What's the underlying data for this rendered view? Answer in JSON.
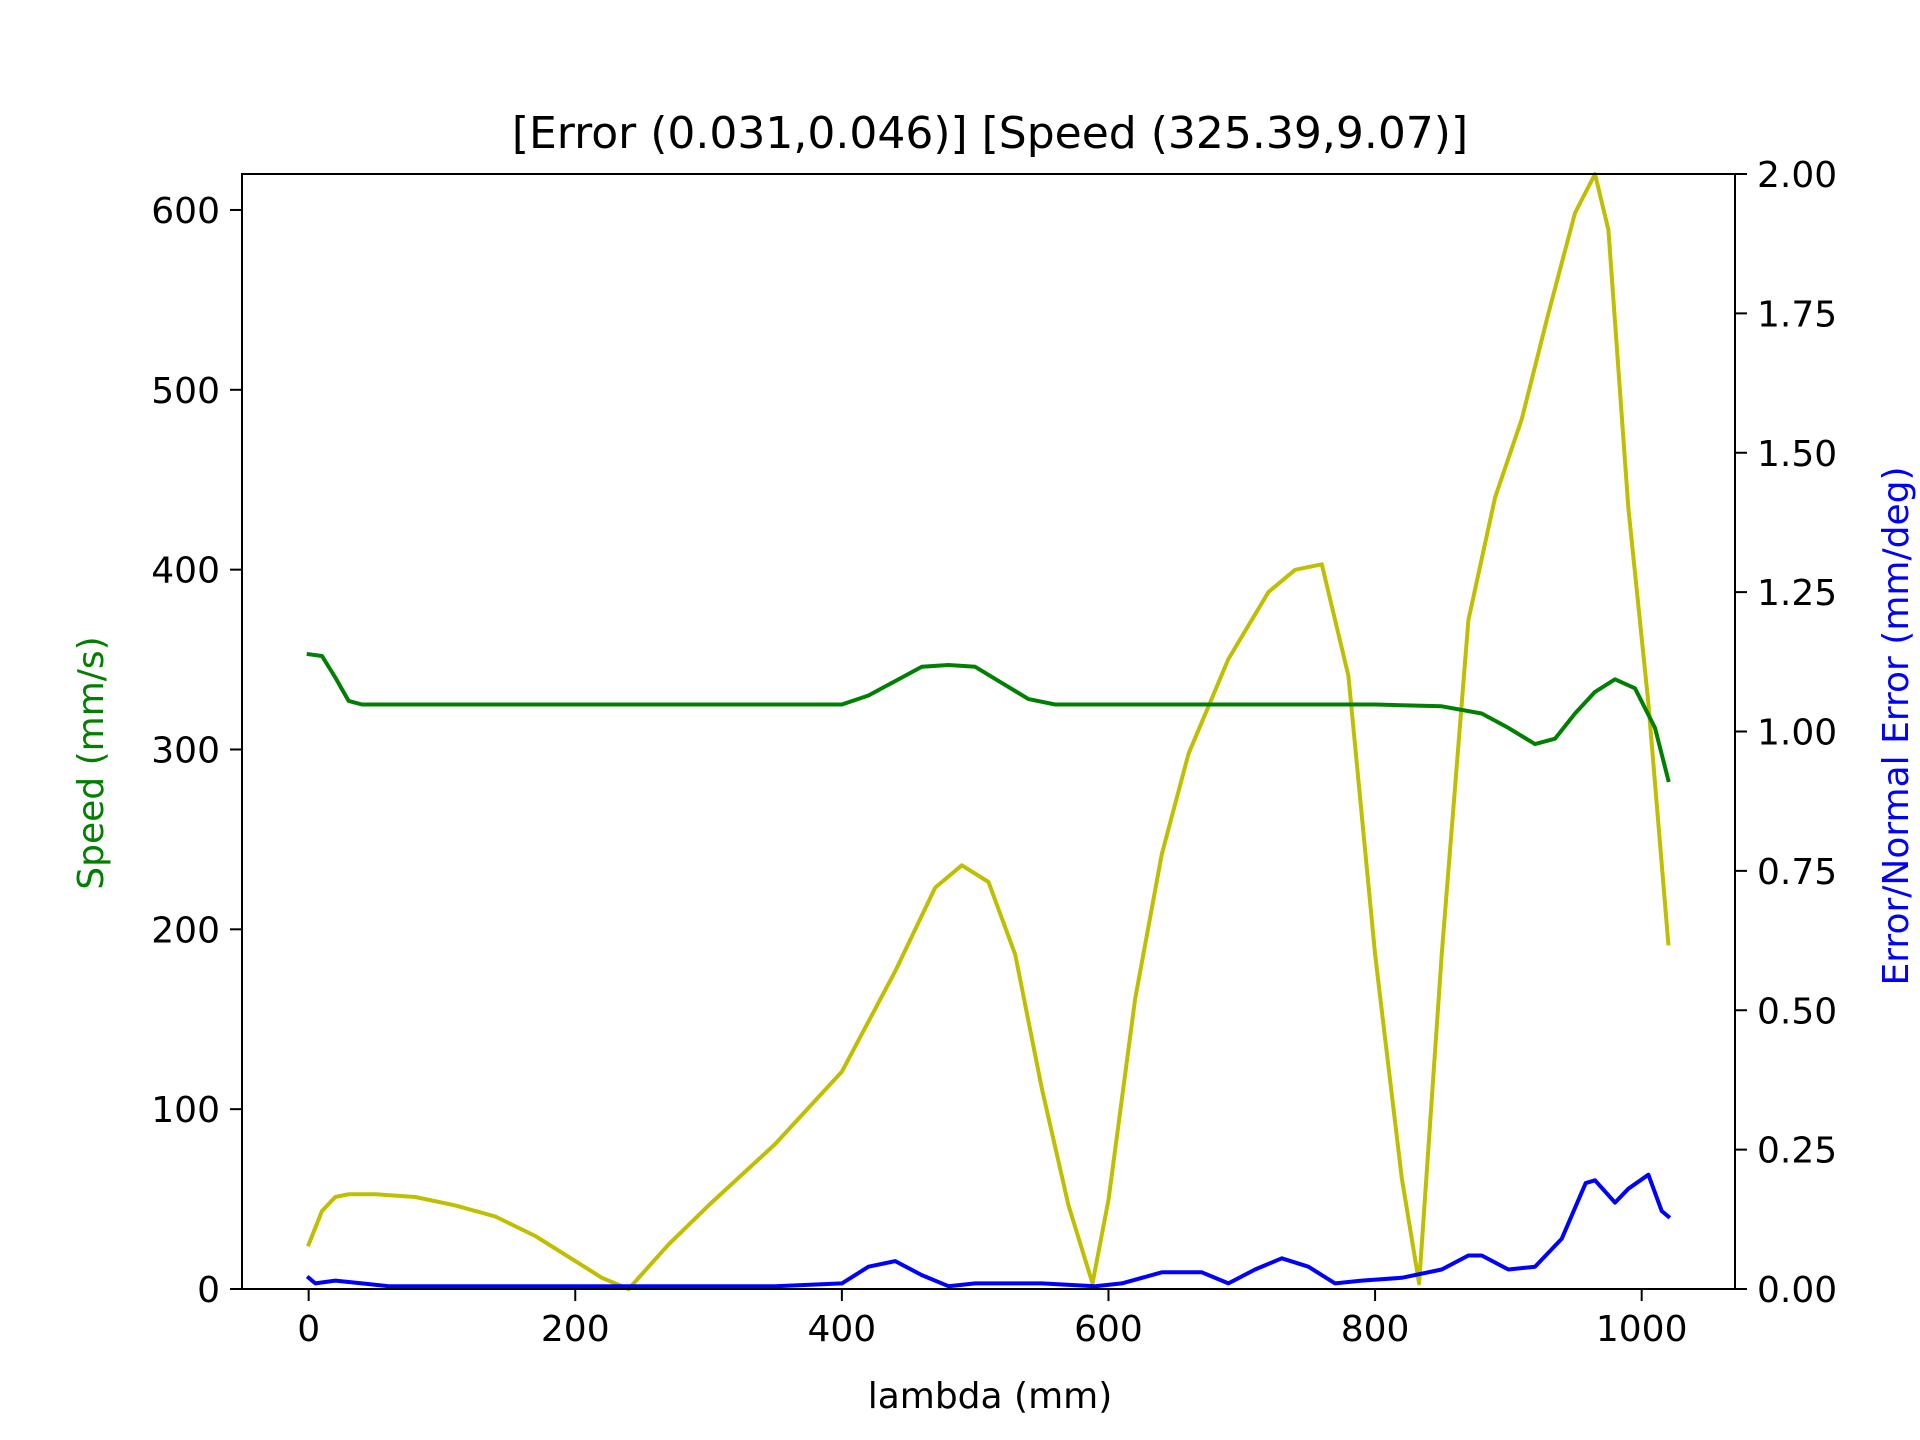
{
  "chart_data": {
    "type": "line",
    "title": "[Error (0.031,0.046)] [Speed (325.39,9.07)]",
    "xlabel": "lambda (mm)",
    "ylabel": "Speed (mm/s)",
    "y2label": "Error/Normal Error (mm/deg)",
    "xlim": [
      -50,
      1070
    ],
    "ylim": [
      0,
      620
    ],
    "y2lim": [
      0,
      2.0
    ],
    "xticks": [
      "0",
      "200",
      "400",
      "600",
      "800",
      "1000"
    ],
    "yticks": [
      "0",
      "100",
      "200",
      "300",
      "400",
      "500",
      "600"
    ],
    "y2ticks": [
      "0.00",
      "0.25",
      "0.50",
      "0.75",
      "1.00",
      "1.25",
      "1.50",
      "1.75",
      "2.00"
    ],
    "grid": false,
    "colors": {
      "speed": "#008000",
      "error": "#0000ff",
      "normal_error": "#bfbf00",
      "axis": "#000000"
    },
    "series": [
      {
        "key": "speed",
        "axis": "left",
        "color": "#008000",
        "x": [
          0,
          10,
          20,
          30,
          40,
          50,
          100,
          150,
          200,
          250,
          300,
          350,
          400,
          420,
          440,
          460,
          480,
          500,
          520,
          540,
          560,
          580,
          600,
          650,
          700,
          750,
          800,
          850,
          880,
          900,
          920,
          935,
          950,
          965,
          980,
          995,
          1010,
          1020
        ],
        "y": [
          353,
          352,
          340,
          327,
          325,
          325,
          325,
          325,
          325,
          325,
          325,
          325,
          325,
          330,
          338,
          346,
          347,
          346,
          337,
          328,
          325,
          325,
          325,
          325,
          325,
          325,
          325,
          324,
          320,
          312,
          303,
          306,
          320,
          332,
          339,
          334,
          312,
          283
        ]
      },
      {
        "key": "error",
        "axis": "right",
        "color": "#0000ff",
        "x": [
          0,
          5,
          20,
          40,
          60,
          100,
          150,
          200,
          250,
          300,
          350,
          400,
          420,
          440,
          460,
          480,
          500,
          550,
          590,
          610,
          640,
          670,
          690,
          710,
          730,
          750,
          770,
          790,
          820,
          850,
          870,
          880,
          900,
          920,
          940,
          958,
          965,
          980,
          990,
          1005,
          1015,
          1020
        ],
        "y": [
          0.02,
          0.01,
          0.015,
          0.01,
          0.005,
          0.005,
          0.005,
          0.005,
          0.005,
          0.005,
          0.005,
          0.01,
          0.04,
          0.05,
          0.025,
          0.005,
          0.01,
          0.01,
          0.005,
          0.01,
          0.03,
          0.03,
          0.01,
          0.035,
          0.055,
          0.04,
          0.01,
          0.015,
          0.02,
          0.035,
          0.06,
          0.06,
          0.035,
          0.04,
          0.09,
          0.19,
          0.195,
          0.155,
          0.18,
          0.205,
          0.14,
          0.13
        ]
      },
      {
        "key": "normal_error",
        "axis": "right",
        "color": "#bfbf00",
        "x": [
          0,
          10,
          20,
          30,
          50,
          80,
          110,
          140,
          170,
          200,
          220,
          240,
          270,
          300,
          350,
          400,
          440,
          470,
          490,
          510,
          530,
          550,
          570,
          588,
          600,
          620,
          640,
          660,
          690,
          720,
          740,
          760,
          780,
          800,
          820,
          833,
          850,
          870,
          890,
          910,
          930,
          950,
          965,
          975,
          990,
          1005,
          1020
        ],
        "y": [
          0.08,
          0.14,
          0.165,
          0.17,
          0.17,
          0.165,
          0.15,
          0.13,
          0.095,
          0.05,
          0.02,
          0.0,
          0.08,
          0.15,
          0.26,
          0.39,
          0.57,
          0.72,
          0.76,
          0.73,
          0.6,
          0.36,
          0.15,
          0.01,
          0.16,
          0.52,
          0.78,
          0.96,
          1.13,
          1.25,
          1.29,
          1.3,
          1.1,
          0.6,
          0.2,
          0.01,
          0.6,
          1.2,
          1.42,
          1.56,
          1.75,
          1.93,
          2.0,
          1.9,
          1.4,
          1.05,
          0.62
        ]
      }
    ]
  }
}
